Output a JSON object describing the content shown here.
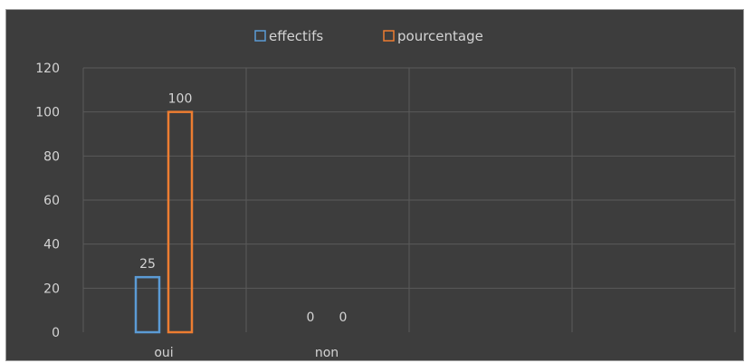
{
  "chart_data": {
    "type": "bar",
    "title": "",
    "xlabel": "",
    "ylabel": "",
    "categories": [
      "oui",
      "non"
    ],
    "series": [
      {
        "name": "effectifs",
        "values": [
          25,
          0
        ],
        "color": "#5b9bd5"
      },
      {
        "name": "pourcentage",
        "values": [
          100,
          0
        ],
        "color": "#ed7d31"
      }
    ],
    "ylim": [
      0,
      120
    ],
    "yticks": [
      0,
      20,
      40,
      60,
      80,
      100,
      120
    ],
    "grid": true,
    "legend_position": "top",
    "data_labels": true,
    "background": "#3d3d3d",
    "gridline_color": "#5a5a5a",
    "text_color": "#d4d4d4"
  }
}
